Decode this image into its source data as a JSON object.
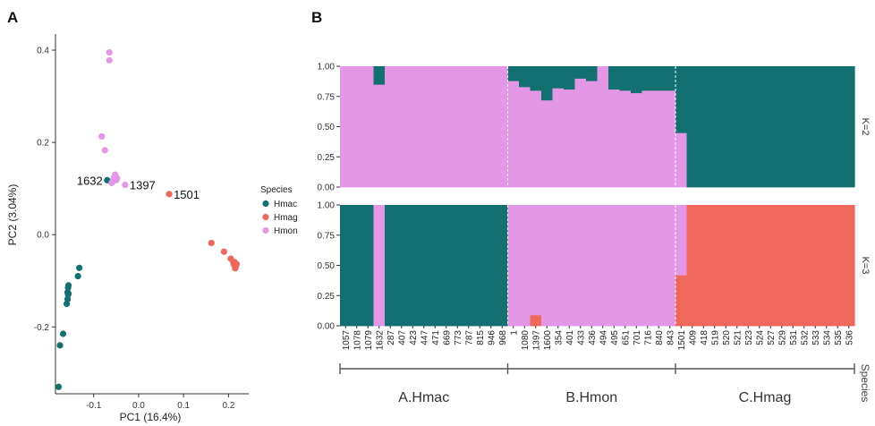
{
  "panels": {
    "a_label": "A",
    "b_label": "B"
  },
  "colors": {
    "Hmac": "#137070",
    "Hmag": "#f0675c",
    "Hmon": "#e597e7"
  },
  "chart_data": [
    {
      "type": "scatter",
      "xlabel": "PC1 (16.4%)",
      "ylabel": "PC2 (3.04%)",
      "xlim": [
        -0.185,
        0.245
      ],
      "ylim": [
        -0.345,
        0.435
      ],
      "xticks": [
        "-0.1",
        "0.0",
        "0.1",
        "0.2"
      ],
      "xtick_values": [
        -0.1,
        0.0,
        0.1,
        0.2
      ],
      "yticks": [
        "-0.2",
        "0.0",
        "0.2",
        "0.4"
      ],
      "ytick_values": [
        -0.2,
        0.0,
        0.2,
        0.4
      ],
      "legend_title": "Species",
      "legend_position": "right",
      "series": [
        {
          "name": "Hmac",
          "points": [
            [
              -0.178,
              -0.33
            ],
            [
              -0.175,
              -0.24
            ],
            [
              -0.168,
              -0.215
            ],
            [
              -0.16,
              -0.15
            ],
            [
              -0.158,
              -0.14
            ],
            [
              -0.157,
              -0.13
            ],
            [
              -0.156,
              -0.128
            ],
            [
              -0.157,
              -0.115
            ],
            [
              -0.156,
              -0.11
            ],
            [
              -0.158,
              -0.125
            ],
            [
              -0.135,
              -0.09
            ],
            [
              -0.132,
              -0.072
            ],
            [
              -0.07,
              0.118
            ]
          ]
        },
        {
          "name": "Hmag",
          "points": [
            [
              0.068,
              0.088
            ],
            [
              0.162,
              -0.018
            ],
            [
              0.19,
              -0.037
            ],
            [
              0.205,
              -0.052
            ],
            [
              0.21,
              -0.058
            ],
            [
              0.212,
              -0.065
            ],
            [
              0.214,
              -0.06
            ],
            [
              0.216,
              -0.07
            ],
            [
              0.218,
              -0.064
            ],
            [
              0.215,
              -0.073
            ],
            [
              0.213,
              -0.062
            ]
          ]
        },
        {
          "name": "Hmon",
          "points": [
            [
              -0.065,
              0.395
            ],
            [
              -0.065,
              0.378
            ],
            [
              -0.082,
              0.213
            ],
            [
              -0.075,
              0.183
            ],
            [
              -0.052,
              0.13
            ],
            [
              -0.054,
              0.125
            ],
            [
              -0.056,
              0.12
            ],
            [
              -0.048,
              0.122
            ],
            [
              -0.058,
              0.115
            ],
            [
              -0.05,
              0.118
            ],
            [
              -0.06,
              0.112
            ],
            [
              -0.03,
              0.108
            ]
          ]
        }
      ],
      "annotations": [
        {
          "text": "1632",
          "x": -0.07,
          "y": 0.118
        },
        {
          "text": "1397",
          "x": -0.03,
          "y": 0.108
        },
        {
          "text": "1501",
          "x": 0.068,
          "y": 0.088
        }
      ]
    },
    {
      "type": "bar",
      "stacked": true,
      "categories": [
        "1057",
        "1078",
        "1079",
        "1632",
        "287",
        "407",
        "423",
        "447",
        "471",
        "669",
        "773",
        "787",
        "815",
        "946",
        "968",
        "1",
        "1080",
        "1397",
        "1600",
        "354",
        "401",
        "433",
        "436",
        "494",
        "495",
        "651",
        "701",
        "716",
        "840",
        "843",
        "1501",
        "409",
        "418",
        "519",
        "520",
        "521",
        "523",
        "524",
        "527",
        "529",
        "531",
        "532",
        "533",
        "534",
        "535",
        "536"
      ],
      "xtick_labels": [
        "1057",
        "1078",
        "1079",
        "1632",
        "287",
        "407",
        "423",
        "447",
        "471",
        "669",
        "773",
        "787",
        "815",
        "946",
        "968",
        "1",
        "1080",
        "1397",
        "1600",
        "354",
        "401",
        "433",
        "436",
        "494",
        "495",
        "651",
        "701",
        "716",
        "840",
        "843",
        "1501",
        "409",
        "418",
        "519",
        "520",
        "521",
        "523",
        "524",
        "527",
        "529",
        "531",
        "532",
        "533",
        "534",
        "535",
        "536"
      ],
      "yticks": [
        "0.00",
        "0.25",
        "0.50",
        "0.75",
        "1.00"
      ],
      "ytick_values": [
        0,
        0.25,
        0.5,
        0.75,
        1
      ],
      "xlabel": "Species",
      "groups": [
        {
          "label": "A.Hmac",
          "start": 0,
          "count": 15
        },
        {
          "label": "B.Hmon",
          "start": 15,
          "count": 15
        },
        {
          "label": "C.Hmag",
          "start": 30,
          "count": 16
        }
      ],
      "facets": [
        {
          "label": "K=2",
          "series": [
            {
              "name": "Hmon",
              "values": [
                1,
                1,
                1,
                0.85,
                1,
                1,
                1,
                1,
                1,
                1,
                1,
                1,
                1,
                1,
                1,
                0.88,
                0.83,
                0.8,
                0.72,
                0.82,
                0.81,
                0.9,
                0.88,
                1,
                0.81,
                0.8,
                0.78,
                0.8,
                0.8,
                0.8,
                0.45,
                0,
                0,
                0,
                0,
                0,
                0,
                0,
                0,
                0,
                0,
                0,
                0,
                0,
                0,
                0
              ]
            },
            {
              "name": "Hmac",
              "values": [
                0,
                0,
                0,
                0.15,
                0,
                0,
                0,
                0,
                0,
                0,
                0,
                0,
                0,
                0,
                0,
                0.12,
                0.17,
                0.2,
                0.28,
                0.18,
                0.19,
                0.1,
                0.12,
                0,
                0.19,
                0.2,
                0.22,
                0.2,
                0.2,
                0.2,
                0.55,
                1,
                1,
                1,
                1,
                1,
                1,
                1,
                1,
                1,
                1,
                1,
                1,
                1,
                1,
                1
              ]
            }
          ]
        },
        {
          "label": "K=3",
          "series": [
            {
              "name": "Hmac",
              "values": [
                1,
                1,
                1,
                0,
                1,
                1,
                1,
                1,
                1,
                1,
                1,
                1,
                1,
                1,
                1,
                0,
                0,
                0,
                0,
                0,
                0,
                0,
                0,
                0,
                0,
                0,
                0,
                0,
                0,
                0,
                0,
                0,
                0,
                0,
                0,
                0,
                0,
                0,
                0,
                0,
                0,
                0,
                0,
                0,
                0,
                0
              ]
            },
            {
              "name": "Hmag",
              "values": [
                0,
                0,
                0,
                0,
                0,
                0,
                0,
                0,
                0,
                0,
                0,
                0,
                0,
                0,
                0,
                0,
                0,
                0.09,
                0,
                0,
                0,
                0,
                0,
                0,
                0,
                0,
                0,
                0,
                0,
                0,
                0.42,
                1,
                1,
                1,
                1,
                1,
                1,
                1,
                1,
                1,
                1,
                1,
                1,
                1,
                1,
                1
              ]
            },
            {
              "name": "Hmon",
              "values": [
                0,
                0,
                0,
                1,
                0,
                0,
                0,
                0,
                0,
                0,
                0,
                0,
                0,
                0,
                0,
                1,
                1,
                0.91,
                1,
                1,
                1,
                1,
                1,
                1,
                1,
                1,
                1,
                1,
                1,
                1,
                0.58,
                0,
                0,
                0,
                0,
                0,
                0,
                0,
                0,
                0,
                0,
                0,
                0,
                0,
                0,
                0
              ]
            }
          ]
        }
      ]
    }
  ]
}
